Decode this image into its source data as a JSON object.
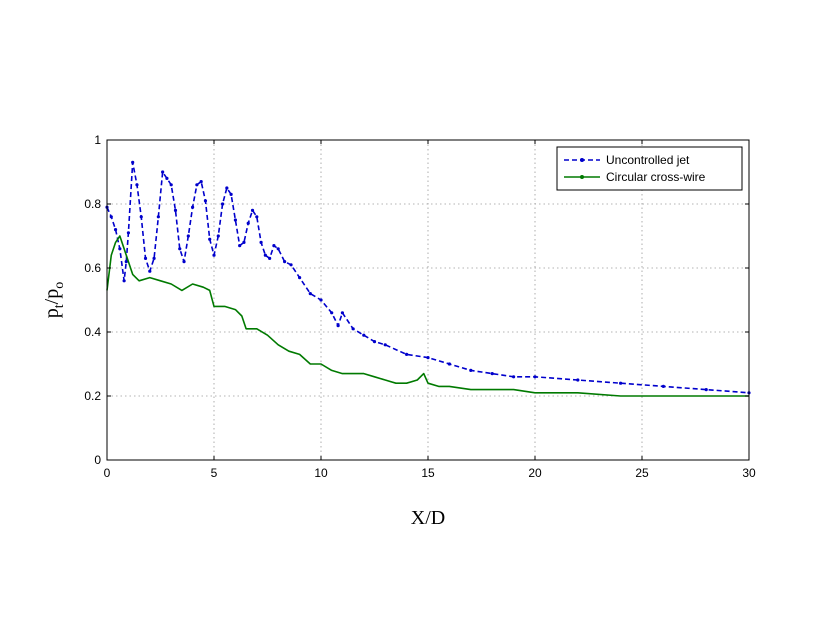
{
  "chart_data": {
    "type": "line",
    "title": "",
    "xlabel": "X/D",
    "ylabel": {
      "main": "p",
      "sub1": "t",
      "slash": "/p",
      "sub2": "o"
    },
    "xlim": [
      0,
      30
    ],
    "ylim": [
      0,
      1
    ],
    "xticks": [
      "0",
      "5",
      "10",
      "15",
      "20",
      "25",
      "30"
    ],
    "yticks": [
      "0",
      "0.2",
      "0.4",
      "0.6",
      "0.8",
      "1"
    ],
    "grid": true,
    "legend_position": "top-right",
    "series": [
      {
        "name": "Uncontrolled jet",
        "color": "#0000cc",
        "style": "dashed-with-dot-markers",
        "x": [
          0,
          0.2,
          0.4,
          0.6,
          0.8,
          0.9,
          1.0,
          1.2,
          1.4,
          1.6,
          1.8,
          2.0,
          2.2,
          2.4,
          2.6,
          2.8,
          3.0,
          3.2,
          3.4,
          3.6,
          3.8,
          4.0,
          4.2,
          4.4,
          4.6,
          4.8,
          5.0,
          5.2,
          5.4,
          5.6,
          5.8,
          6.0,
          6.2,
          6.4,
          6.6,
          6.8,
          7.0,
          7.2,
          7.4,
          7.6,
          7.8,
          8.0,
          8.3,
          8.6,
          9.0,
          9.5,
          10.0,
          10.5,
          10.8,
          11.0,
          11.5,
          12.0,
          12.5,
          13.0,
          14.0,
          15.0,
          16.0,
          17.0,
          18.0,
          19.0,
          20.0,
          22.0,
          24.0,
          26.0,
          28.0,
          30.0
        ],
        "y": [
          0.79,
          0.76,
          0.72,
          0.66,
          0.56,
          0.62,
          0.71,
          0.93,
          0.86,
          0.76,
          0.63,
          0.59,
          0.63,
          0.76,
          0.9,
          0.88,
          0.86,
          0.78,
          0.66,
          0.62,
          0.7,
          0.79,
          0.86,
          0.87,
          0.81,
          0.69,
          0.64,
          0.7,
          0.8,
          0.85,
          0.83,
          0.75,
          0.67,
          0.68,
          0.74,
          0.78,
          0.76,
          0.68,
          0.64,
          0.63,
          0.67,
          0.66,
          0.62,
          0.61,
          0.57,
          0.52,
          0.5,
          0.46,
          0.42,
          0.46,
          0.41,
          0.39,
          0.37,
          0.36,
          0.33,
          0.32,
          0.3,
          0.28,
          0.27,
          0.26,
          0.26,
          0.25,
          0.24,
          0.23,
          0.22,
          0.21
        ]
      },
      {
        "name": "Circular cross-wire",
        "color": "#007a00",
        "style": "solid",
        "x": [
          0,
          0.2,
          0.4,
          0.6,
          0.8,
          1.0,
          1.2,
          1.5,
          2.0,
          2.5,
          3.0,
          3.5,
          4.0,
          4.5,
          4.8,
          5.0,
          5.5,
          6.0,
          6.3,
          6.5,
          7.0,
          7.5,
          8.0,
          8.5,
          9.0,
          9.5,
          10.0,
          10.5,
          11.0,
          11.5,
          12.0,
          12.5,
          13.0,
          13.5,
          14.0,
          14.5,
          14.8,
          15.0,
          15.5,
          16.0,
          17.0,
          18.0,
          19.0,
          20.0,
          22.0,
          24.0,
          26.0,
          28.0,
          30.0
        ],
        "y": [
          0.53,
          0.64,
          0.68,
          0.7,
          0.66,
          0.62,
          0.58,
          0.56,
          0.57,
          0.56,
          0.55,
          0.53,
          0.55,
          0.54,
          0.53,
          0.48,
          0.48,
          0.47,
          0.45,
          0.41,
          0.41,
          0.39,
          0.36,
          0.34,
          0.33,
          0.3,
          0.3,
          0.28,
          0.27,
          0.27,
          0.27,
          0.26,
          0.25,
          0.24,
          0.24,
          0.25,
          0.27,
          0.24,
          0.23,
          0.23,
          0.22,
          0.22,
          0.22,
          0.21,
          0.21,
          0.2,
          0.2,
          0.2,
          0.2
        ]
      }
    ]
  }
}
